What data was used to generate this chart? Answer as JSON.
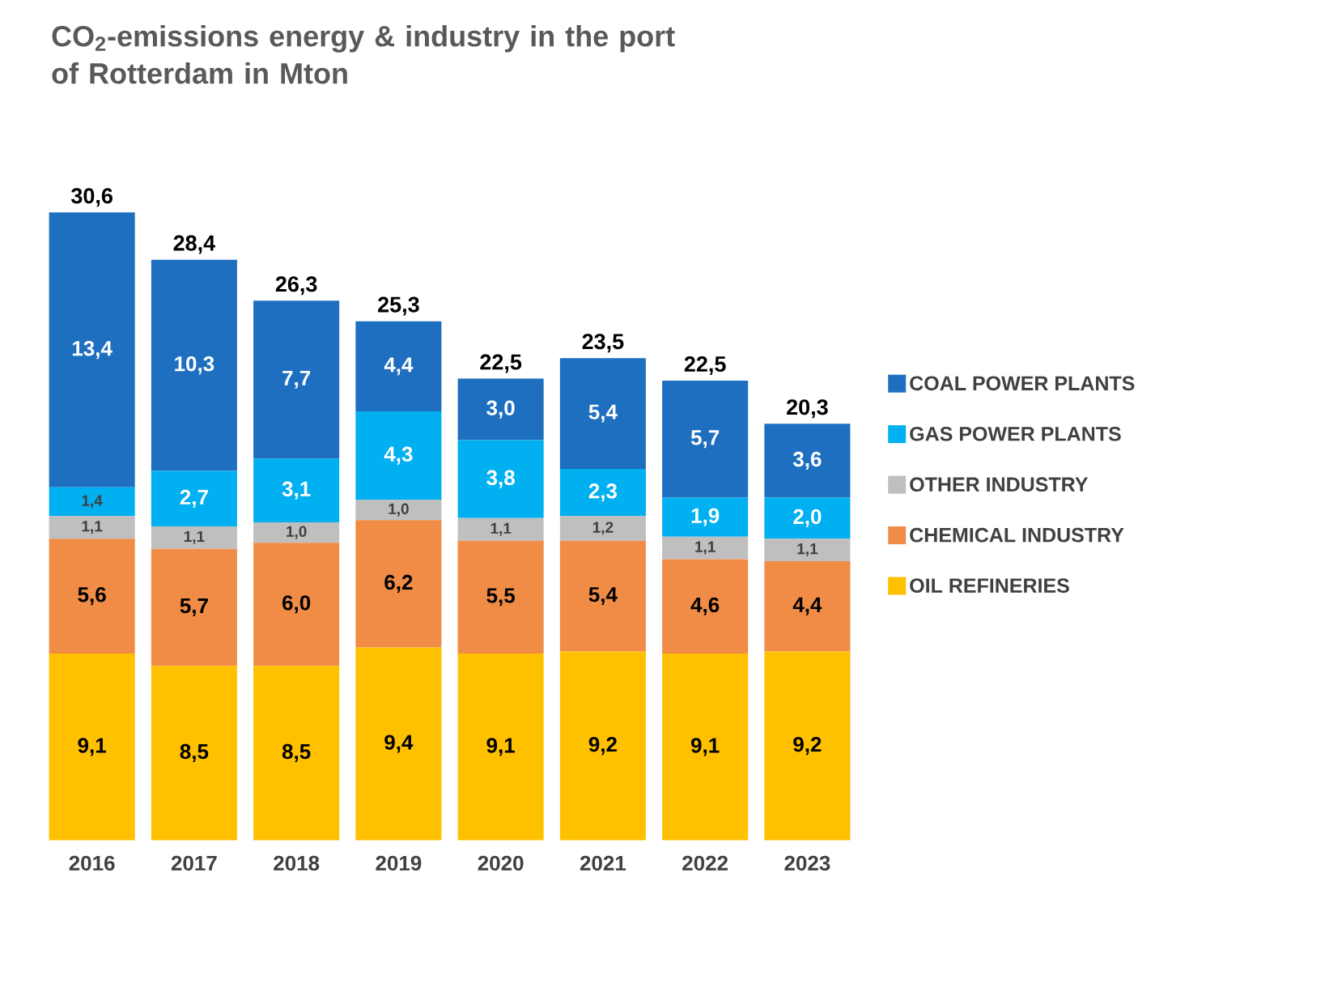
{
  "chart_data": {
    "type": "bar",
    "stacked": true,
    "title": "CO$_{2}$-emissions energy & industry in the port of Rotterdam in Mton",
    "categories": [
      "2016",
      "2017",
      "2018",
      "2019",
      "2020",
      "2021",
      "2022",
      "2023"
    ],
    "series": [
      {
        "name": "OIL REFINERIES",
        "color": "#ffc000",
        "values": [
          9.1,
          8.5,
          8.5,
          9.4,
          9.1,
          9.2,
          9.1,
          9.2
        ],
        "value_labels": [
          "9,1",
          "8,5",
          "8,5",
          "9,4",
          "9,1",
          "9,2",
          "9,1",
          "9,2"
        ]
      },
      {
        "name": "CHEMICAL INDUSTRY",
        "color": "#f08c46",
        "values": [
          5.6,
          5.7,
          6.0,
          6.2,
          5.5,
          5.4,
          4.6,
          4.4
        ],
        "value_labels": [
          "5,6",
          "5,7",
          "6,0",
          "6,2",
          "5,5",
          "5,4",
          "4,6",
          "4,4"
        ]
      },
      {
        "name": "OTHER INDUSTRY",
        "color": "#bfbfbf",
        "values": [
          1.1,
          1.1,
          1.0,
          1.0,
          1.1,
          1.2,
          1.1,
          1.1
        ],
        "value_labels": [
          "1,1",
          "1,1",
          "1,0",
          "1,0",
          "1,1",
          "1,2",
          "1,1",
          "1,1"
        ]
      },
      {
        "name": "GAS POWER PLANTS",
        "color": "#00b0f0",
        "values": [
          1.4,
          2.7,
          3.1,
          4.3,
          3.8,
          2.3,
          1.9,
          2.0
        ],
        "value_labels": [
          "1,4",
          "2,7",
          "3,1",
          "4,3",
          "3,8",
          "2,3",
          "1,9",
          "2,0"
        ]
      },
      {
        "name": "COAL POWER PLANTS",
        "color": "#1f6fc0",
        "values": [
          13.4,
          10.3,
          7.7,
          4.4,
          3.0,
          5.4,
          5.7,
          3.6
        ],
        "value_labels": [
          "13,4",
          "10,3",
          "7,7",
          "4,4",
          "3,0",
          "5,4",
          "5,7",
          "3,6"
        ]
      }
    ],
    "totals": [
      "30,6",
      "28,4",
      "26,3",
      "25,3",
      "22,5",
      "23,5",
      "22,5",
      "20,3"
    ],
    "legend": "right"
  }
}
